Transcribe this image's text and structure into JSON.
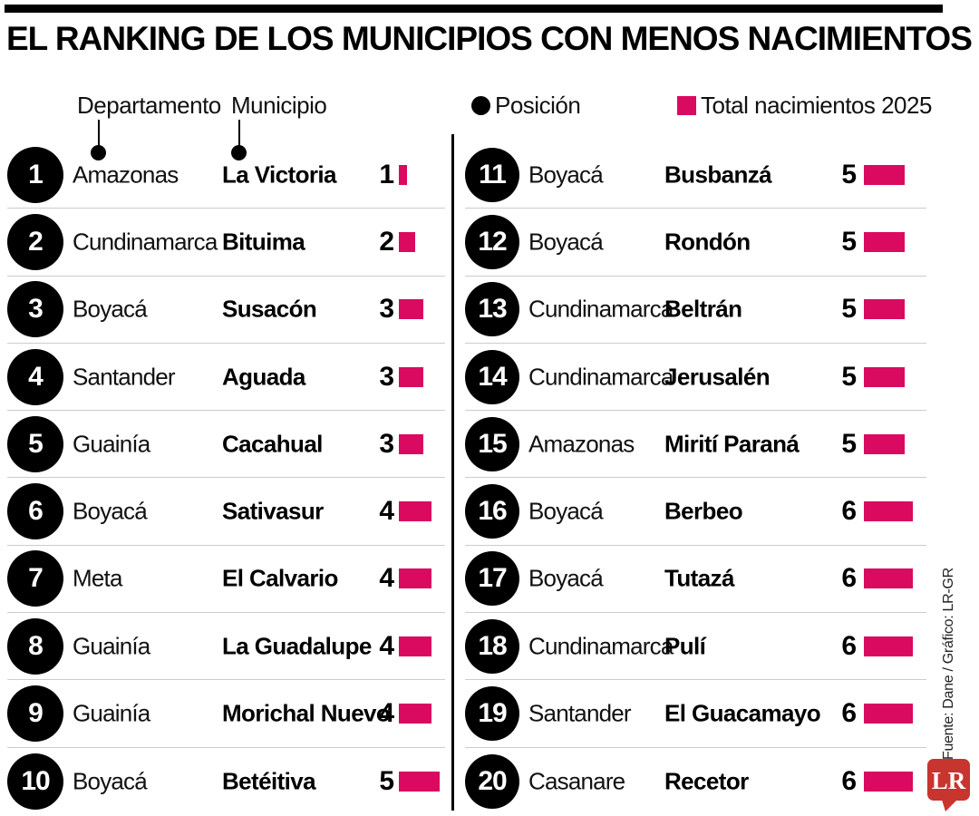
{
  "title": "EL RANKING DE LOS MUNICIPIOS CON MENOS NACIMIENTOS",
  "legend": {
    "departamento_label": "Departamento",
    "municipio_label": "Municipio",
    "posicion_label": "Posición",
    "total_label": "Total nacimientos 2025"
  },
  "source_credit": "Fuente: Dane / Gráfico: LR-GR",
  "logo_text": "LR",
  "colors": {
    "accent_pink": "#D90A60",
    "logo_red": "#C8342E",
    "bar_black": "#000000",
    "divider_gray": "#CCCCCC"
  },
  "chart_data": {
    "type": "bar",
    "title": "EL RANKING DE LOS MUNICIPIOS CON MENOS NACIMIENTOS",
    "value_label": "Total nacimientos 2025",
    "position_label": "Posición",
    "xlabel": "Total nacimientos 2025",
    "ylabel": "Posición",
    "value_range": [
      1,
      6
    ],
    "layout": "two-column ranked list, positions 1-10 left, 11-20 right, bar width proportional to value",
    "rows": [
      {
        "pos": 1,
        "dept": "Amazonas",
        "mun": "La Victoria",
        "value": 1
      },
      {
        "pos": 2,
        "dept": "Cundinamarca",
        "mun": "Bituima",
        "value": 2
      },
      {
        "pos": 3,
        "dept": "Boyacá",
        "mun": "Susacón",
        "value": 3
      },
      {
        "pos": 4,
        "dept": "Santander",
        "mun": "Aguada",
        "value": 3
      },
      {
        "pos": 5,
        "dept": "Guainía",
        "mun": "Cacahual",
        "value": 3
      },
      {
        "pos": 6,
        "dept": "Boyacá",
        "mun": "Sativasur",
        "value": 4
      },
      {
        "pos": 7,
        "dept": "Meta",
        "mun": "El Calvario",
        "value": 4
      },
      {
        "pos": 8,
        "dept": "Guainía",
        "mun": "La Guadalupe",
        "value": 4
      },
      {
        "pos": 9,
        "dept": "Guainía",
        "mun": "Morichal Nuevo",
        "value": 4
      },
      {
        "pos": 10,
        "dept": "Boyacá",
        "mun": "Betéitiva",
        "value": 5
      },
      {
        "pos": 11,
        "dept": "Boyacá",
        "mun": "Busbanzá",
        "value": 5
      },
      {
        "pos": 12,
        "dept": "Boyacá",
        "mun": "Rondón",
        "value": 5
      },
      {
        "pos": 13,
        "dept": "Cundinamarca",
        "mun": "Beltrán",
        "value": 5
      },
      {
        "pos": 14,
        "dept": "Cundinamarca",
        "mun": "Jerusalén",
        "value": 5
      },
      {
        "pos": 15,
        "dept": "Amazonas",
        "mun": "Mirití Paraná",
        "value": 5
      },
      {
        "pos": 16,
        "dept": "Boyacá",
        "mun": "Berbeo",
        "value": 6
      },
      {
        "pos": 17,
        "dept": "Boyacá",
        "mun": "Tutazá",
        "value": 6
      },
      {
        "pos": 18,
        "dept": "Cundinamarca",
        "mun": "Pulí",
        "value": 6
      },
      {
        "pos": 19,
        "dept": "Santander",
        "mun": "El Guacamayo",
        "value": 6
      },
      {
        "pos": 20,
        "dept": "Casanare",
        "mun": "Recetor",
        "value": 6
      }
    ]
  }
}
